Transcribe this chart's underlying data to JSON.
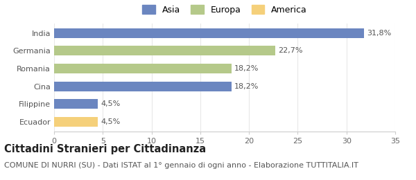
{
  "categories": [
    "India",
    "Germania",
    "Romania",
    "Cina",
    "Filippine",
    "Ecuador"
  ],
  "values": [
    31.8,
    22.7,
    18.2,
    18.2,
    4.5,
    4.5
  ],
  "bar_colors": [
    "#6b86c0",
    "#b5c98a",
    "#b5c98a",
    "#6b86c0",
    "#6b86c0",
    "#f5d07a"
  ],
  "labels": [
    "31,8%",
    "22,7%",
    "18,2%",
    "18,2%",
    "4,5%",
    "4,5%"
  ],
  "xlim": [
    0,
    35
  ],
  "xticks": [
    0,
    5,
    10,
    15,
    20,
    25,
    30,
    35
  ],
  "legend_entries": [
    {
      "label": "Asia",
      "color": "#6b86c0"
    },
    {
      "label": "Europa",
      "color": "#b5c98a"
    },
    {
      "label": "America",
      "color": "#f5d07a"
    }
  ],
  "title": "Cittadini Stranieri per Cittadinanza",
  "subtitle": "COMUNE DI NURRI (SU) - Dati ISTAT al 1° gennaio di ogni anno - Elaborazione TUTTITALIA.IT",
  "background_color": "#ffffff",
  "bar_height": 0.55,
  "title_fontsize": 10.5,
  "subtitle_fontsize": 8.0,
  "label_fontsize": 8.0,
  "tick_fontsize": 8.0,
  "legend_fontsize": 9.0
}
